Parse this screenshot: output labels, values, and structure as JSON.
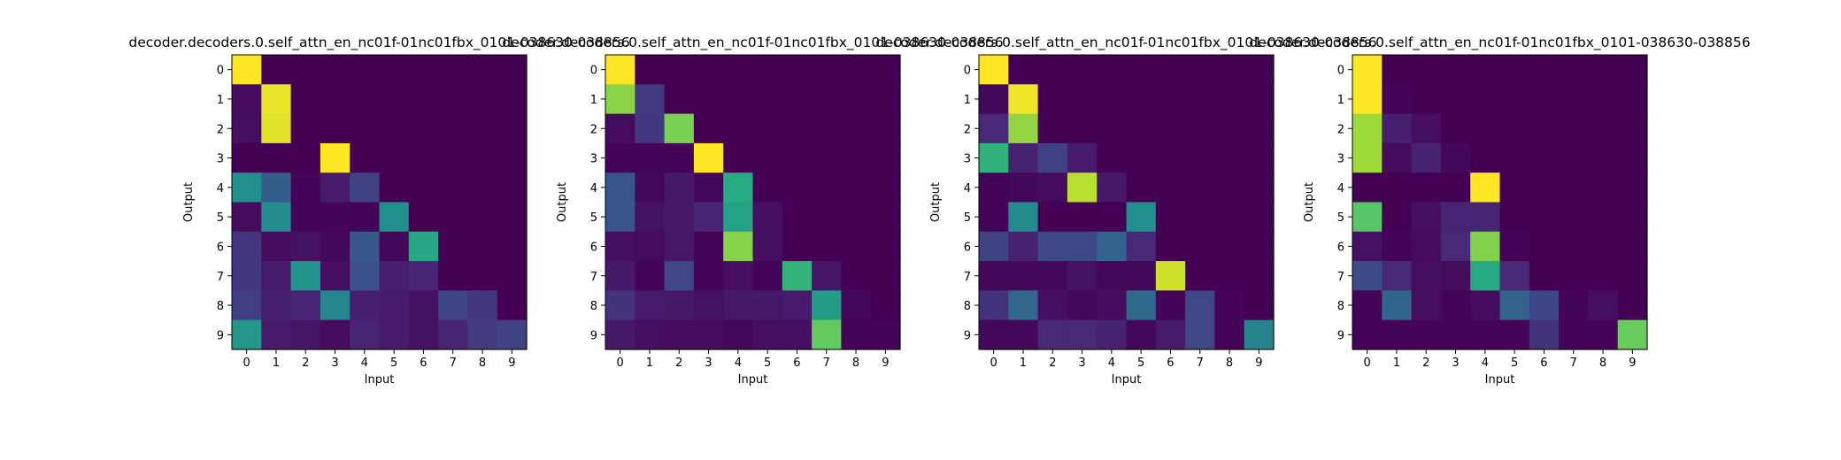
{
  "colormap": "viridis",
  "chart_data": [
    {
      "type": "heatmap",
      "title": "decoder.decoders.0.self_attn_en_nc01f-01nc01fbx_0101-038630-038856",
      "xlabel": "Input",
      "ylabel": "Output",
      "x_ticks": [
        "0",
        "1",
        "2",
        "3",
        "4",
        "5",
        "6",
        "7",
        "8",
        "9"
      ],
      "y_ticks": [
        "0",
        "1",
        "2",
        "3",
        "4",
        "5",
        "6",
        "7",
        "8",
        "9"
      ],
      "zlim": [
        0,
        1
      ],
      "values": [
        [
          1.0,
          0.0,
          0.0,
          0.0,
          0.0,
          0.0,
          0.0,
          0.0,
          0.0,
          0.0
        ],
        [
          0.03,
          0.97,
          0.0,
          0.0,
          0.0,
          0.0,
          0.0,
          0.0,
          0.0,
          0.0
        ],
        [
          0.04,
          0.96,
          0.0,
          0.0,
          0.0,
          0.0,
          0.0,
          0.0,
          0.0,
          0.0
        ],
        [
          0.0,
          0.0,
          0.0,
          1.0,
          0.0,
          0.0,
          0.0,
          0.0,
          0.0,
          0.0
        ],
        [
          0.5,
          0.3,
          0.01,
          0.08,
          0.2,
          0.0,
          0.0,
          0.0,
          0.0,
          0.0
        ],
        [
          0.03,
          0.48,
          0.01,
          0.01,
          0.01,
          0.5,
          0.0,
          0.0,
          0.0,
          0.0
        ],
        [
          0.16,
          0.03,
          0.05,
          0.02,
          0.28,
          0.02,
          0.6,
          0.0,
          0.0,
          0.0
        ],
        [
          0.17,
          0.08,
          0.52,
          0.04,
          0.25,
          0.09,
          0.11,
          0.0,
          0.0,
          0.0
        ],
        [
          0.19,
          0.09,
          0.11,
          0.46,
          0.09,
          0.08,
          0.05,
          0.21,
          0.17,
          0.0
        ],
        [
          0.53,
          0.08,
          0.06,
          0.03,
          0.11,
          0.08,
          0.05,
          0.11,
          0.18,
          0.2
        ]
      ]
    },
    {
      "type": "heatmap",
      "title": "decoder.decoders.0.self_attn_en_nc01f-01nc01fbx_0101-038630-038856",
      "xlabel": "Input",
      "ylabel": "Output",
      "x_ticks": [
        "0",
        "1",
        "2",
        "3",
        "4",
        "5",
        "6",
        "7",
        "8",
        "9"
      ],
      "y_ticks": [
        "0",
        "1",
        "2",
        "3",
        "4",
        "5",
        "6",
        "7",
        "8",
        "9"
      ],
      "zlim": [
        0,
        1
      ],
      "values": [
        [
          1.0,
          0.0,
          0.0,
          0.0,
          0.0,
          0.0,
          0.0,
          0.0,
          0.0,
          0.0
        ],
        [
          0.83,
          0.18,
          0.0,
          0.0,
          0.0,
          0.0,
          0.0,
          0.0,
          0.0,
          0.0
        ],
        [
          0.03,
          0.17,
          0.8,
          0.0,
          0.0,
          0.0,
          0.0,
          0.0,
          0.0,
          0.0
        ],
        [
          0.01,
          0.01,
          0.01,
          1.0,
          0.0,
          0.0,
          0.0,
          0.0,
          0.0,
          0.0
        ],
        [
          0.27,
          0.02,
          0.07,
          0.02,
          0.62,
          0.0,
          0.0,
          0.0,
          0.0,
          0.0
        ],
        [
          0.27,
          0.05,
          0.07,
          0.11,
          0.58,
          0.04,
          0.0,
          0.0,
          0.0,
          0.0
        ],
        [
          0.04,
          0.03,
          0.07,
          0.01,
          0.82,
          0.04,
          0.0,
          0.0,
          0.0,
          0.0
        ],
        [
          0.07,
          0.01,
          0.22,
          0.01,
          0.04,
          0.01,
          0.66,
          0.06,
          0.0,
          0.0
        ],
        [
          0.15,
          0.08,
          0.07,
          0.05,
          0.07,
          0.07,
          0.08,
          0.56,
          0.02,
          0.0
        ],
        [
          0.07,
          0.04,
          0.03,
          0.03,
          0.02,
          0.04,
          0.04,
          0.76,
          0.01,
          0.01
        ]
      ]
    },
    {
      "type": "heatmap",
      "title": "decoder.decoders.0.self_attn_en_nc01f-01nc01fbx_0101-038630-038856",
      "xlabel": "Input",
      "ylabel": "Output",
      "x_ticks": [
        "0",
        "1",
        "2",
        "3",
        "4",
        "5",
        "6",
        "7",
        "8",
        "9"
      ],
      "y_ticks": [
        "0",
        "1",
        "2",
        "3",
        "4",
        "5",
        "6",
        "7",
        "8",
        "9"
      ],
      "zlim": [
        0,
        1
      ],
      "values": [
        [
          1.0,
          0.0,
          0.0,
          0.0,
          0.0,
          0.0,
          0.0,
          0.0,
          0.0,
          0.0
        ],
        [
          0.02,
          0.98,
          0.0,
          0.0,
          0.0,
          0.0,
          0.0,
          0.0,
          0.0,
          0.0
        ],
        [
          0.12,
          0.84,
          0.0,
          0.0,
          0.0,
          0.0,
          0.0,
          0.0,
          0.0,
          0.0
        ],
        [
          0.65,
          0.1,
          0.2,
          0.08,
          0.0,
          0.0,
          0.0,
          0.0,
          0.0,
          0.0
        ],
        [
          0.01,
          0.02,
          0.03,
          0.9,
          0.07,
          0.0,
          0.0,
          0.0,
          0.0,
          0.0
        ],
        [
          0.01,
          0.48,
          0.0,
          0.0,
          0.0,
          0.5,
          0.0,
          0.0,
          0.0,
          0.0
        ],
        [
          0.2,
          0.1,
          0.22,
          0.22,
          0.32,
          0.12,
          0.0,
          0.0,
          0.0,
          0.0
        ],
        [
          0.02,
          0.02,
          0.02,
          0.05,
          0.02,
          0.02,
          0.93,
          0.0,
          0.0,
          0.0
        ],
        [
          0.15,
          0.34,
          0.04,
          0.02,
          0.03,
          0.35,
          0.01,
          0.22,
          0.01,
          0.0
        ],
        [
          0.02,
          0.02,
          0.12,
          0.12,
          0.1,
          0.02,
          0.08,
          0.22,
          0.01,
          0.45
        ]
      ]
    },
    {
      "type": "heatmap",
      "title": "decoder.decoders.0.self_attn_en_nc01f-01nc01fbx_0101-038630-038856",
      "xlabel": "Input",
      "ylabel": "Output",
      "x_ticks": [
        "0",
        "1",
        "2",
        "3",
        "4",
        "5",
        "6",
        "7",
        "8",
        "9"
      ],
      "y_ticks": [
        "0",
        "1",
        "2",
        "3",
        "4",
        "5",
        "6",
        "7",
        "8",
        "9"
      ],
      "zlim": [
        0,
        1
      ],
      "values": [
        [
          1.0,
          0.0,
          0.0,
          0.0,
          0.0,
          0.0,
          0.0,
          0.0,
          0.0,
          0.0
        ],
        [
          1.0,
          0.01,
          0.0,
          0.0,
          0.0,
          0.0,
          0.0,
          0.0,
          0.0,
          0.0
        ],
        [
          0.86,
          0.09,
          0.04,
          0.0,
          0.0,
          0.0,
          0.0,
          0.0,
          0.0,
          0.0
        ],
        [
          0.86,
          0.03,
          0.1,
          0.02,
          0.0,
          0.0,
          0.0,
          0.0,
          0.0,
          0.0
        ],
        [
          0.0,
          0.0,
          0.0,
          0.0,
          1.0,
          0.0,
          0.0,
          0.0,
          0.0,
          0.0
        ],
        [
          0.74,
          0.0,
          0.04,
          0.11,
          0.11,
          0.0,
          0.0,
          0.0,
          0.0,
          0.0
        ],
        [
          0.05,
          0.01,
          0.03,
          0.12,
          0.81,
          0.01,
          0.0,
          0.0,
          0.0,
          0.0
        ],
        [
          0.23,
          0.12,
          0.04,
          0.03,
          0.61,
          0.12,
          0.0,
          0.0,
          0.0,
          0.0
        ],
        [
          0.01,
          0.33,
          0.04,
          0.01,
          0.03,
          0.32,
          0.21,
          0.01,
          0.04,
          0.0
        ],
        [
          0.01,
          0.01,
          0.01,
          0.01,
          0.01,
          0.01,
          0.15,
          0.01,
          0.01,
          0.77
        ]
      ]
    }
  ]
}
